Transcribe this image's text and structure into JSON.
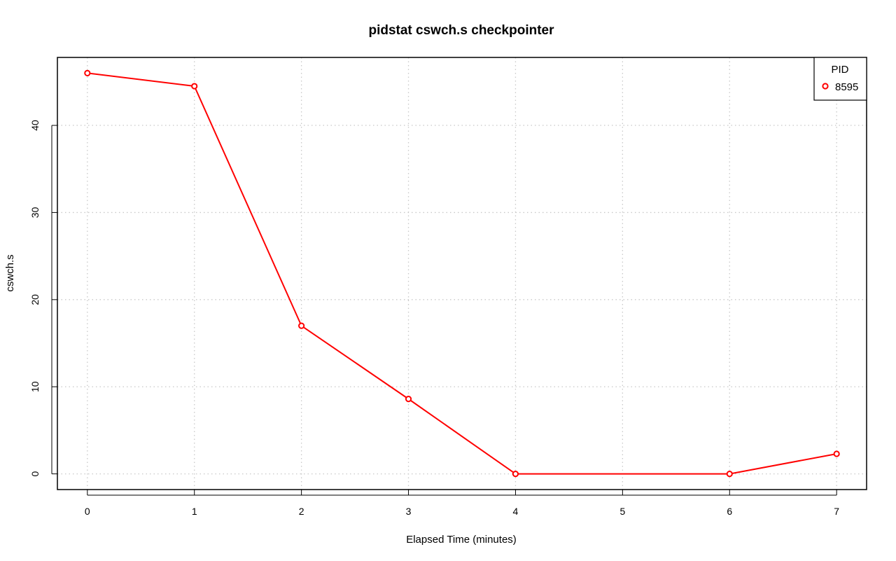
{
  "chart_data": {
    "type": "line",
    "title": "pidstat cswch.s checkpointer",
    "xlabel": "Elapsed Time (minutes)",
    "ylabel": "cswch.s",
    "x_ticks": [
      0,
      1,
      2,
      3,
      4,
      5,
      6,
      7
    ],
    "y_ticks": [
      0,
      10,
      20,
      30,
      40
    ],
    "xlim": [
      -0.28,
      7.28
    ],
    "ylim": [
      -1.8,
      47.8
    ],
    "grid": true,
    "legend": {
      "title": "PID",
      "placement": "top-right",
      "entries": [
        "8595"
      ]
    },
    "series": [
      {
        "name": "8595",
        "color": "#ff0000",
        "x": [
          0,
          1,
          2,
          3,
          4,
          6,
          7
        ],
        "values": [
          46.0,
          44.5,
          17.0,
          8.6,
          0.0,
          0.0,
          2.3
        ]
      }
    ]
  }
}
